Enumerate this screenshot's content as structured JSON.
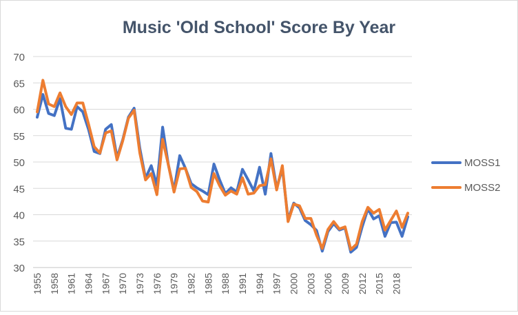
{
  "chart_data": {
    "type": "line",
    "title": "Music 'Old School' Score By Year",
    "xlabel": "",
    "ylabel": "",
    "ylim": [
      30,
      70
    ],
    "yticks": [
      30,
      35,
      40,
      45,
      50,
      55,
      60,
      65,
      70
    ],
    "xticks": [
      1955,
      1958,
      1961,
      1964,
      1967,
      1970,
      1973,
      1976,
      1979,
      1982,
      1985,
      1988,
      1991,
      1994,
      1997,
      2000,
      2003,
      2006,
      2009,
      2012,
      2015,
      2018
    ],
    "grid": true,
    "legend_position": "right",
    "x": [
      1955,
      1956,
      1957,
      1958,
      1959,
      1960,
      1961,
      1962,
      1963,
      1964,
      1965,
      1966,
      1967,
      1968,
      1969,
      1970,
      1971,
      1972,
      1973,
      1974,
      1975,
      1976,
      1977,
      1978,
      1979,
      1980,
      1981,
      1982,
      1983,
      1984,
      1985,
      1986,
      1987,
      1988,
      1989,
      1990,
      1991,
      1992,
      1993,
      1994,
      1995,
      1996,
      1997,
      1998,
      1999,
      2000,
      2001,
      2002,
      2003,
      2004,
      2005,
      2006,
      2007,
      2008,
      2009,
      2010,
      2011,
      2012,
      2013,
      2014,
      2015,
      2016,
      2017,
      2018,
      2019,
      2020
    ],
    "series": [
      {
        "name": "MOSS1",
        "color": "#4472c4",
        "values": [
          58.5,
          62.8,
          59.2,
          58.8,
          62.0,
          56.4,
          56.2,
          60.5,
          59.5,
          56.2,
          52.0,
          51.6,
          56.2,
          57.1,
          50.8,
          54.2,
          58.5,
          60.2,
          52.6,
          46.9,
          49.3,
          45.6,
          56.6,
          49.5,
          44.6,
          51.2,
          48.8,
          45.9,
          45.1,
          44.5,
          43.8,
          49.6,
          46.6,
          44.0,
          45.1,
          44.3,
          48.6,
          46.6,
          44.5,
          49.0,
          43.9,
          51.6,
          45.0,
          48.8,
          39.1,
          42.2,
          41.3,
          38.9,
          38.1,
          37.0,
          33.1,
          36.8,
          38.3,
          37.1,
          37.5,
          32.9,
          33.8,
          37.7,
          41.1,
          39.2,
          39.8,
          35.9,
          38.5,
          38.6,
          35.9,
          39.6
        ]
      },
      {
        "name": "MOSS2",
        "color": "#ed7d31",
        "values": [
          59.5,
          65.5,
          61.0,
          60.5,
          63.1,
          60.5,
          59.0,
          61.2,
          61.2,
          57.2,
          52.9,
          51.7,
          55.5,
          55.9,
          50.4,
          54.0,
          58.3,
          59.8,
          51.7,
          46.6,
          47.8,
          43.8,
          54.3,
          49.5,
          44.3,
          48.7,
          48.8,
          45.2,
          44.4,
          42.6,
          42.4,
          47.8,
          45.5,
          43.7,
          44.5,
          43.9,
          47.0,
          43.9,
          44.1,
          45.5,
          45.7,
          50.6,
          44.7,
          49.3,
          38.7,
          42.0,
          41.7,
          39.3,
          39.3,
          36.1,
          33.6,
          37.2,
          38.7,
          37.3,
          37.7,
          33.4,
          34.4,
          38.7,
          41.4,
          40.3,
          41.0,
          37.1,
          38.9,
          40.7,
          37.6,
          40.3
        ]
      }
    ]
  }
}
